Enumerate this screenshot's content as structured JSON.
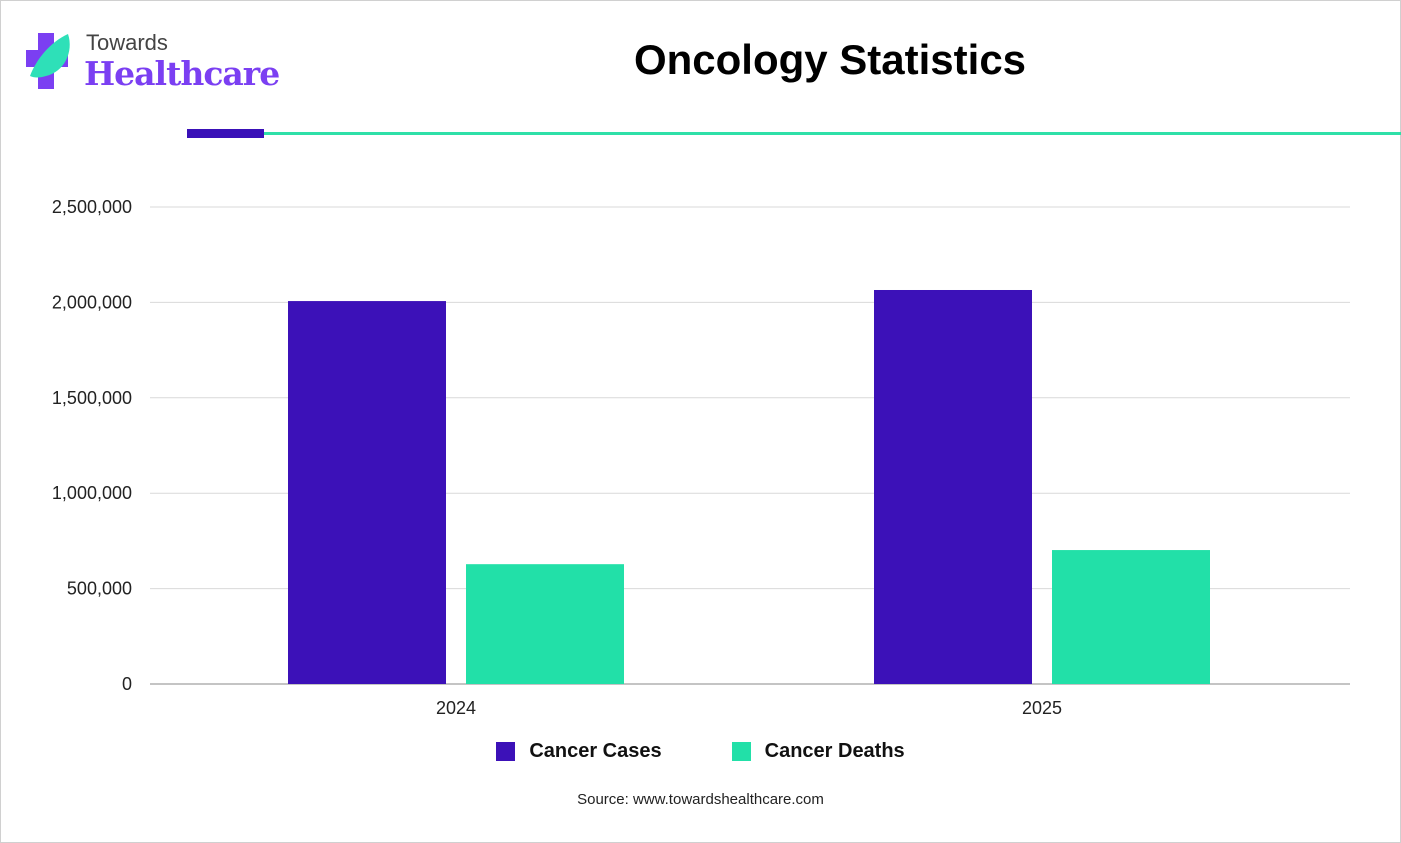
{
  "logo": {
    "line1": "Towards",
    "line2": "Healthcare"
  },
  "header": {
    "title": "Oncology Statistics"
  },
  "colors": {
    "cases": "#3c11b8",
    "deaths": "#22e0a8",
    "accent_purple": "#3a11b8",
    "accent_teal": "#2ee0a8"
  },
  "chart_data": {
    "type": "bar",
    "title": "Oncology Statistics",
    "categories": [
      "2024",
      "2025"
    ],
    "series": [
      {
        "name": "Cancer Cases",
        "values": [
          2007000,
          2065000
        ]
      },
      {
        "name": "Cancer Deaths",
        "values": [
          628000,
          702000
        ]
      }
    ],
    "ylim": [
      0,
      2500000
    ],
    "yticks": [
      "0",
      "500,000",
      "1,000,000",
      "1,500,000",
      "2,000,000",
      "2,500,000"
    ],
    "grid": true,
    "legend": "bottom",
    "xlabel": "",
    "ylabel": ""
  },
  "legend": {
    "items": [
      "Cancer Cases",
      "Cancer Deaths"
    ]
  },
  "source": "Source: www.towardshealthcare.com"
}
